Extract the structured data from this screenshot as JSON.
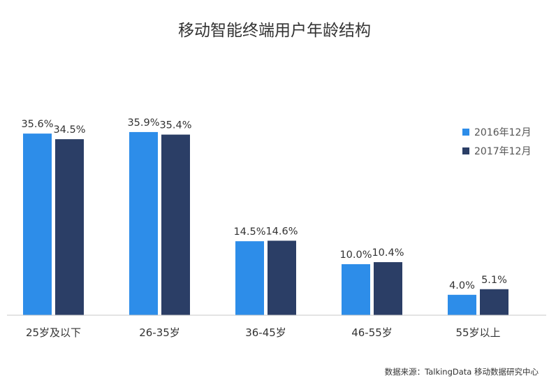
{
  "chart_data": {
    "type": "bar",
    "title": "移动智能终端用户年龄结构",
    "categories": [
      "25岁及以下",
      "26-35岁",
      "36-45岁",
      "46-55岁",
      "55岁以上"
    ],
    "series": [
      {
        "name": "2016年12月",
        "color": "#2d8de9",
        "values": [
          35.6,
          35.9,
          14.5,
          10.0,
          4.0
        ],
        "labels": [
          "35.6%",
          "35.9%",
          "14.5%",
          "10.0%",
          "4.0%"
        ]
      },
      {
        "name": "2017年12月",
        "color": "#2b3e66",
        "values": [
          34.5,
          35.4,
          14.6,
          10.4,
          5.1
        ],
        "labels": [
          "34.5%",
          "35.4%",
          "14.6%",
          "10.4%",
          "5.1%"
        ]
      }
    ],
    "ylim": [
      0,
      40
    ],
    "grid": false,
    "legend_position": "right",
    "source": "数据来源：TalkingData 移动数据研究中心"
  }
}
